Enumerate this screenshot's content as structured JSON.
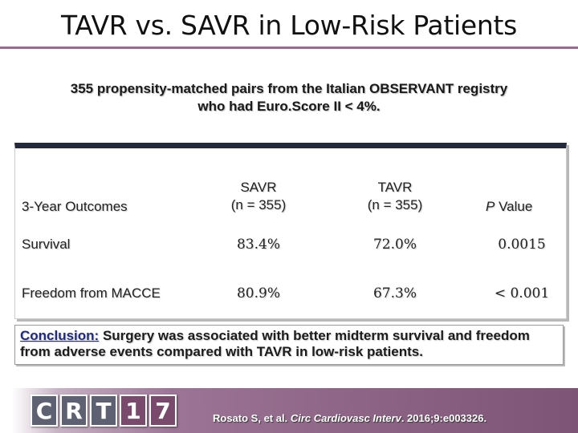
{
  "title": "TAVR vs. SAVR in Low-Risk Patients",
  "subtitle_line1": "355 propensity-matched pairs from the Italian OBSERVANT registry",
  "subtitle_line2": "who had Euro.Score II < 4%.",
  "table": {
    "header_label": "3-Year Outcomes",
    "col_savr_line1": "SAVR",
    "col_savr_line2": "(n = 355)",
    "col_tavr_line1": "TAVR",
    "col_tavr_line2": "(n = 355)",
    "col_p_italic": "P",
    "col_p_rest": " Value",
    "rows": [
      {
        "label": "Survival",
        "savr": "83.4%",
        "tavr": "72.0%",
        "p": "0.0015"
      },
      {
        "label": "Freedom from MACCE",
        "savr": "80.9%",
        "tavr": "67.3%",
        "p": "< 0.001"
      }
    ]
  },
  "conclusion": {
    "label": "Conclusion:",
    "text": "  Surgery was associated with better midterm survival and freedom from adverse events compared with TAVR in low-risk patients."
  },
  "footer": {
    "logo_letters": [
      "C",
      "R",
      "T"
    ],
    "logo_numbers": [
      "1",
      "7"
    ],
    "citation_authors": "Rosato S, et al. ",
    "citation_journal": "Circ Cardiovasc Interv",
    "citation_rest": ". 2016;9:e003326."
  }
}
